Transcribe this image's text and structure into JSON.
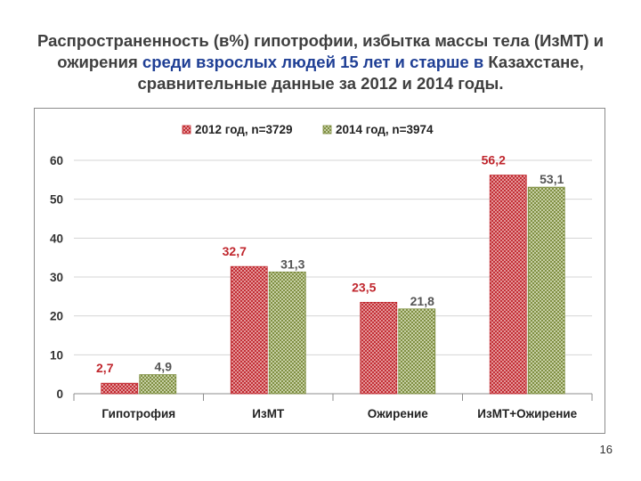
{
  "slide": {
    "title_part1": "Распространенность (в%) гипотрофии, избытка массы тела (ИзМТ) и ожирения ",
    "title_highlight": "среди взрослых людей 15 лет и старше в",
    "title_part2": " Казахстане, сравнительные данные за 2012 и 2014 годы.",
    "page_number": "16"
  },
  "colors": {
    "series_2012": "#c0262d",
    "series_2012_light": "#f3c5c5",
    "series_2014": "#7a8a3a",
    "series_2014_light": "#e6ecd2",
    "label_2012": "#c0262d",
    "label_2014": "#555555",
    "title_highlight": "#1f3f95"
  },
  "chart_data": {
    "type": "bar",
    "categories": [
      "Гипотрофия",
      "ИзМТ",
      "Ожирение",
      "ИзМТ+Ожирение"
    ],
    "series": [
      {
        "name": "2012 год, n=3729",
        "values": [
          2.7,
          32.7,
          23.5,
          56.2
        ],
        "labels": [
          "2,7",
          "32,7",
          "23,5",
          "56,2"
        ]
      },
      {
        "name": "2014 год, n=3974",
        "values": [
          4.9,
          31.3,
          21.8,
          53.1
        ],
        "labels": [
          "4,9",
          "31,3",
          "21,8",
          "53,1"
        ]
      }
    ],
    "yticks": [
      "0",
      "10",
      "20",
      "30",
      "40",
      "50",
      "60"
    ],
    "ylim": [
      0,
      60
    ],
    "grid": true,
    "legend_position": "top"
  }
}
